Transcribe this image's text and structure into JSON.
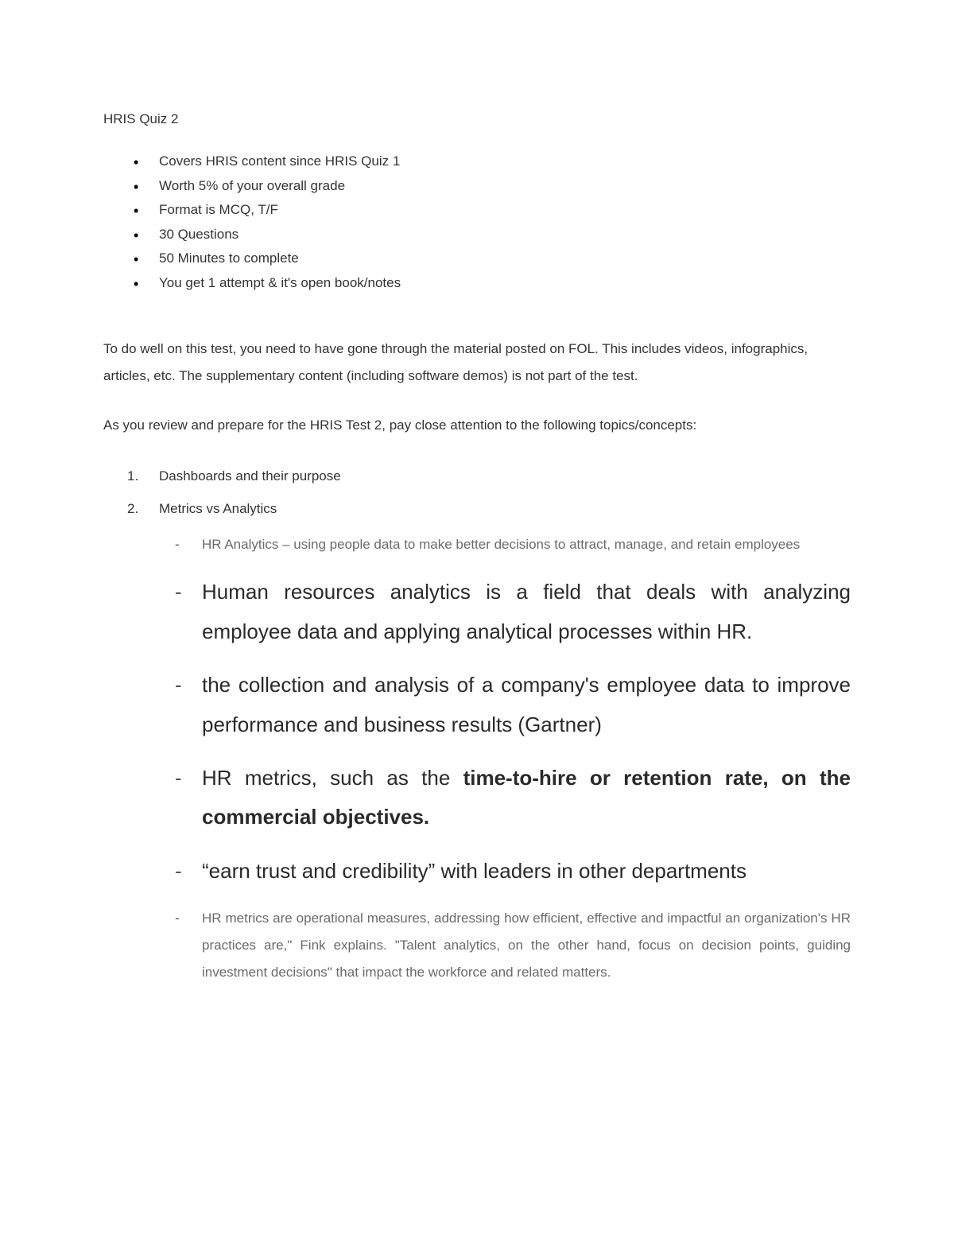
{
  "title": "HRIS Quiz 2",
  "bullets": [
    "Covers HRIS content since HRIS Quiz 1",
    "Worth 5% of your overall grade",
    "Format is MCQ, T/F",
    "30 Questions",
    "50 Minutes to complete",
    "You get 1 attempt & it's open book/notes"
  ],
  "para1": "To do well on this test, you need to have gone through the material posted on FOL. This includes videos, infographics, articles, etc. The supplementary content (including software demos) is not part of the test.",
  "para2": "As you review and prepare for the HRIS Test 2, pay close attention to the following topics/concepts:",
  "topics": {
    "n1": "1.",
    "t1": "Dashboards and their purpose",
    "n2": "2.",
    "t2": "Metrics vs Analytics",
    "sub": {
      "a": "HR Analytics – using people data to make better decisions to attract, manage, and retain employees",
      "b": "Human resources analytics is a field that deals with analyzing employee data and applying analytical processes within HR.",
      "c": "the collection and analysis of a company's employee data to improve performance and business results (Gartner)",
      "d_pre": "HR metrics, such as the ",
      "d_bold": "time-to-hire or retention rate, on the commercial objectives.",
      "e": "“earn trust and credibility” with leaders in other departments",
      "f": "HR metrics are operational measures, addressing how efficient, effective and impactful an organization's HR practices are,\" Fink explains. \"Talent analytics, on the other hand, focus on decision points, guiding investment decisions\" that impact the workforce and related matters."
    }
  },
  "colors": {
    "text": "#333333",
    "gray": "#6a6a6a",
    "bg": "#ffffff"
  },
  "fontsize": {
    "body": 17,
    "large": 26
  }
}
